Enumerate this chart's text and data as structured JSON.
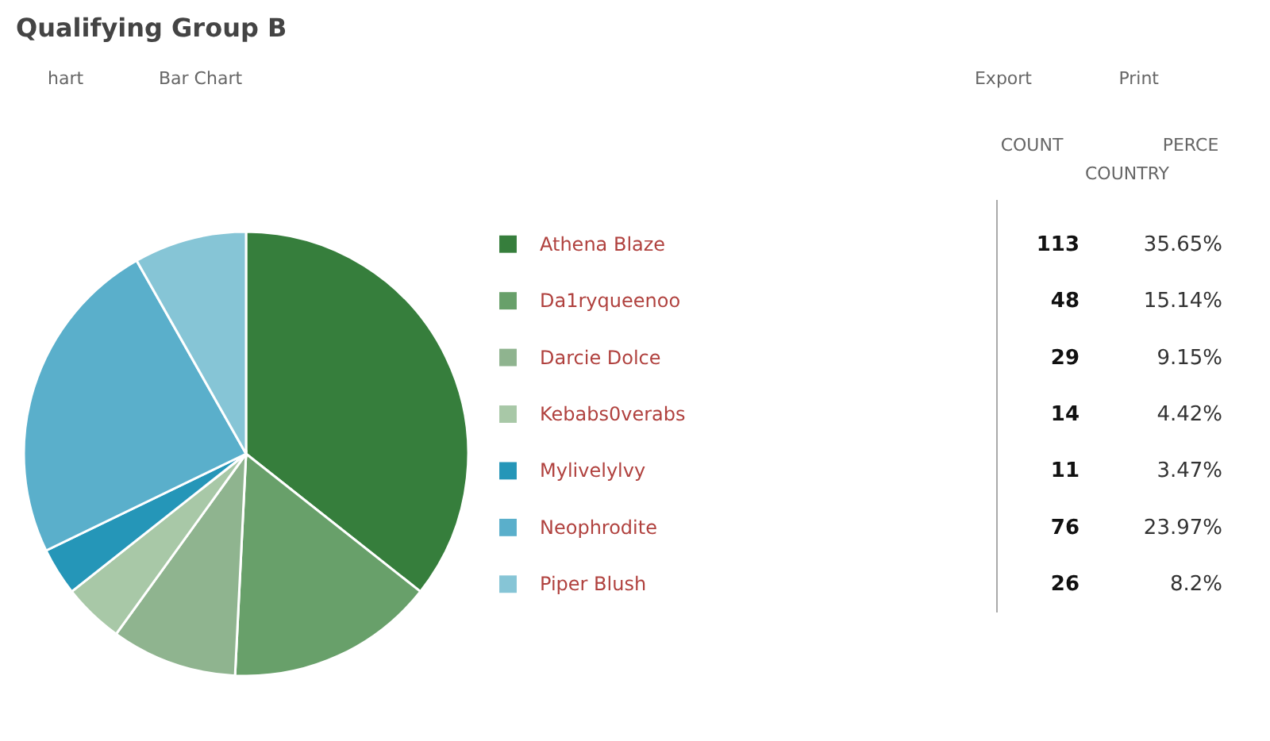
{
  "chart_data": {
    "type": "pie",
    "title": "Qualifying Group B",
    "categories": [
      "Athena Blaze",
      "Da1ryqueenoo",
      "Darcie Dolce",
      "Kebabs0verabs",
      "Mylivelylvy",
      "Neophrodite",
      "Piper Blush"
    ],
    "values": [
      113,
      48,
      29,
      14,
      11,
      76,
      26
    ],
    "colors": [
      "#367e3c",
      "#68a06a",
      "#8fb48f",
      "#a8c8a7",
      "#2596b8",
      "#5aafcb",
      "#86c5d6"
    ],
    "data_labels": true,
    "legend": "right",
    "annotations": [
      "hart",
      "Bar Chart",
      "Export",
      "Print",
      "COUNT",
      "PERCE",
      "COUNTRY",
      {
        "text": "35.65%",
        "x": "Athena Blaze"
      },
      {
        "text": "15.14%",
        "x": "Da1ryqueenoo"
      },
      {
        "text": "9.15%",
        "x": "Darcie Dolce"
      },
      {
        "text": "4.42%",
        "x": "Kebabs0verabs"
      },
      {
        "text": "3.47%",
        "x": "Mylivelylvy"
      },
      {
        "text": "23.97%",
        "x": "Neophrodite"
      },
      {
        "text": "8.2%",
        "x": "Piper Blush"
      }
    ]
  }
}
